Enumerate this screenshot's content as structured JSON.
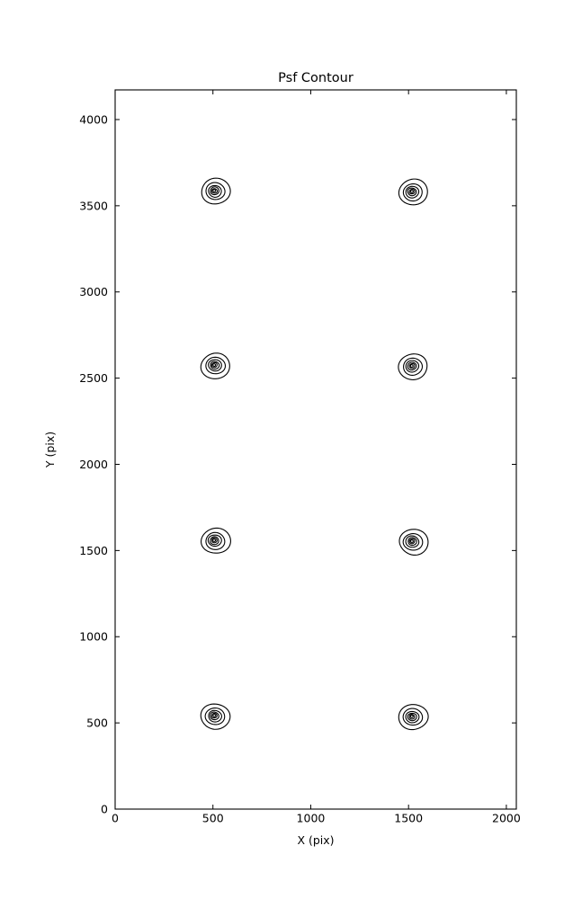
{
  "page": {
    "background_color": "#ffffff",
    "foreground_color": "#000000"
  },
  "chart_data": {
    "type": "contour",
    "title": "Psf Contour",
    "xlabel": "X (pix)",
    "ylabel": "Y (pix)",
    "xlim": [
      0,
      2051
    ],
    "ylim": [
      0,
      4172
    ],
    "xticks": [
      0,
      500,
      1000,
      1500,
      2000
    ],
    "yticks": [
      0,
      500,
      1000,
      1500,
      2000,
      2500,
      3000,
      3500,
      4000
    ],
    "grid": false,
    "legend": null,
    "line_color": "#000000",
    "background_color": "#ffffff",
    "contour_levels": 6,
    "outer_radius_pix": 74,
    "psf_centers": [
      {
        "x": 515,
        "y": 537
      },
      {
        "x": 1525,
        "y": 532
      },
      {
        "x": 515,
        "y": 1554
      },
      {
        "x": 1525,
        "y": 1549
      },
      {
        "x": 515,
        "y": 2571
      },
      {
        "x": 1525,
        "y": 2566
      },
      {
        "x": 515,
        "y": 3582
      },
      {
        "x": 1525,
        "y": 3577
      }
    ]
  }
}
